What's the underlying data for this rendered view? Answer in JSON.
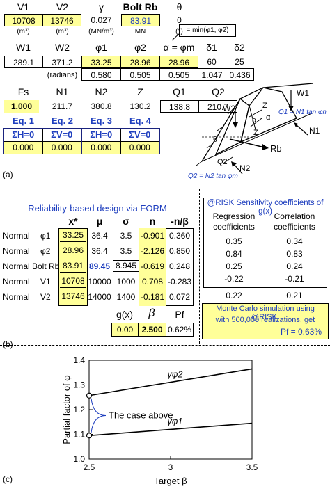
{
  "panel_a": {
    "row1_headers": [
      "V1",
      "V2",
      "γ",
      "Bolt Rb",
      "θ"
    ],
    "row1_values": [
      "10708",
      "13746",
      "0.027",
      "83.91",
      "0"
    ],
    "row1_units": [
      "(m³)",
      "(m³)",
      "(MN/m³)",
      "MN",
      "(°)"
    ],
    "min_note": "= min(φ1, φ2)",
    "row2_headers": [
      "W1",
      "W2",
      "φ1",
      "φ2",
      "α = φm",
      "δ1",
      "δ2"
    ],
    "row2_values": [
      "289.1",
      "371.2",
      "33.25",
      "28.96",
      "28.96",
      "60",
      "25"
    ],
    "radians_label": "(radians)",
    "row3_values": [
      "0.580",
      "0.505",
      "0.505",
      "1.047",
      "0.436"
    ],
    "row4_headers": [
      "Fs",
      "N1",
      "N2",
      "Z",
      "Q1",
      "Q2"
    ],
    "row4_values": [
      "1.000",
      "211.7",
      "380.8",
      "130.2",
      "138.8",
      "210.7"
    ],
    "eq_labels": [
      "Eq. 1",
      "Eq. 2",
      "Eq. 3",
      "Eq. 4"
    ],
    "eq_headers": [
      "ΣH=0",
      "ΣV=0",
      "ΣH=0",
      "ΣV=0"
    ],
    "eq_values": [
      "0.000",
      "0.000",
      "0.000",
      "0.000"
    ],
    "panel_label": "(a)",
    "diagram_labels": {
      "w1": "W1",
      "w2": "W2",
      "z1": "Z",
      "z2": "Z",
      "alpha1": "α",
      "alpha2": "α",
      "theta": "θ",
      "rb": "Rb",
      "n1": "N1",
      "n2": "N2",
      "q1": "Q1",
      "q2": "Q2",
      "q1eq": "Q1 = N1 tan φm",
      "q2eq": "Q2 = N2 tan φm"
    }
  },
  "panel_b": {
    "title": "Reliability-based design via FORM",
    "headers": [
      "x*",
      "μ",
      "σ",
      "n",
      "-n/β"
    ],
    "rows": [
      {
        "dist": "Normal",
        "var": "φ1",
        "x": "33.25",
        "mu": "36.4",
        "sigma": "3.5",
        "n": "-0.901",
        "nb": "0.360"
      },
      {
        "dist": "Normal",
        "var": "φ2",
        "x": "28.96",
        "mu": "36.4",
        "sigma": "3.5",
        "n": "-2.126",
        "nb": "0.850"
      },
      {
        "dist": "Normal",
        "var": "Bolt Rb",
        "x": "83.91",
        "mu": "89.45",
        "sigma": "8.945",
        "n": "-0.619",
        "nb": "0.248"
      },
      {
        "dist": "Normal",
        "var": "V1",
        "x": "10708",
        "mu": "10000",
        "sigma": "1000",
        "n": "0.708",
        "nb": "-0.283"
      },
      {
        "dist": "Normal",
        "var": "V2",
        "x": "13746",
        "mu": "14000",
        "sigma": "1400",
        "n": "-0.181",
        "nb": "0.072"
      }
    ],
    "result_headers": [
      "g(x)",
      "β",
      "Pf"
    ],
    "result_values": [
      "0.00",
      "2.500",
      "0.62%"
    ],
    "sens_title": "@RISK Sensitivity coefficients of g(x)",
    "sens_col1": "Regression coefficients",
    "sens_col2": "Correlation coefficients",
    "sens_rows": [
      [
        "0.35",
        "0.34"
      ],
      [
        "0.84",
        "0.83"
      ],
      [
        "0.25",
        "0.24"
      ],
      [
        "-0.22",
        "-0.21"
      ],
      [
        "0.22",
        "0.21"
      ]
    ],
    "mc_text1": "Monte Carlo simulation using @RISK,",
    "mc_text2": "with 500,000 realizations, get",
    "mc_text3": "Pf = 0.63%",
    "panel_label": "(b)"
  },
  "panel_c": {
    "panel_label": "(c)",
    "annotation": "The case above",
    "chart_data": {
      "type": "line",
      "xlabel": "Target β",
      "ylabel": "Partial factor of φ",
      "xlim": [
        2.5,
        3.5
      ],
      "ylim": [
        1.0,
        1.4
      ],
      "x_ticks": [
        "2.5",
        "3",
        "3.5"
      ],
      "y_ticks": [
        "1.0",
        "1.1",
        "1.2",
        "1.3",
        "1.4"
      ],
      "series": [
        {
          "name": "γφ2",
          "x": [
            2.5,
            3.5
          ],
          "y": [
            1.257,
            1.365
          ]
        },
        {
          "name": "γφ1",
          "x": [
            2.5,
            3.5
          ],
          "y": [
            1.095,
            1.145
          ]
        }
      ],
      "markers": [
        {
          "x": 2.5,
          "y": 1.257
        },
        {
          "x": 2.5,
          "y": 1.095
        }
      ]
    }
  }
}
